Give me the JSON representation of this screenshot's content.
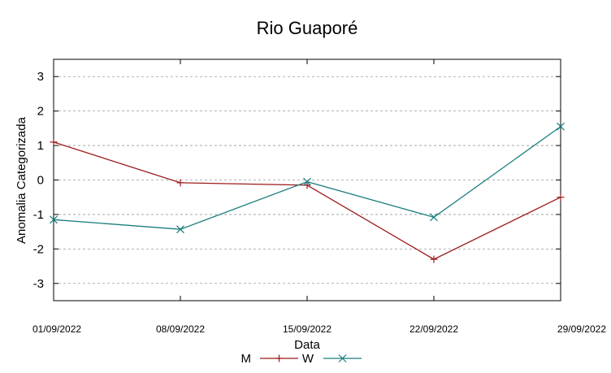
{
  "chart_data": {
    "type": "line",
    "title": "Rio Guaporé",
    "xlabel": "Data",
    "ylabel": "Anomalia Categorizada",
    "categories": [
      "01/09/2022",
      "08/09/2022",
      "15/09/2022",
      "22/09/2022",
      "29/09/2022"
    ],
    "ylim": [
      -3.5,
      3.5
    ],
    "yticks": [
      "-3",
      "-2",
      "-1",
      "0",
      "1",
      "2",
      "3"
    ],
    "grid": "horizontal-dashed",
    "legend_position": "bottom",
    "series": [
      {
        "name": "M",
        "color": "#9b1b1b",
        "marker": "plus",
        "values": [
          1.1,
          -0.08,
          -0.15,
          -2.3,
          -0.5
        ]
      },
      {
        "name": "W",
        "color": "#1a7d7d",
        "marker": "cross",
        "values": [
          -1.15,
          -1.43,
          -0.05,
          -1.08,
          1.55
        ]
      }
    ]
  }
}
